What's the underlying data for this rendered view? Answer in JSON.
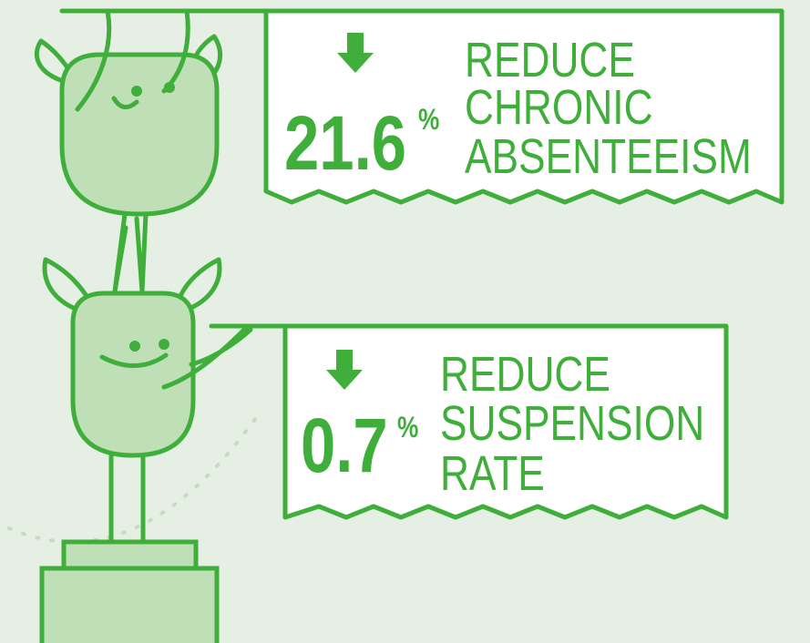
{
  "banners": [
    {
      "value": 21.6,
      "unit": "%",
      "lines": [
        "REDUCE",
        "CHRONIC",
        "ABSENTEEISM"
      ]
    },
    {
      "value": 0.7,
      "unit": "%",
      "lines": [
        "REDUCE",
        "SUSPENSION",
        "RATE"
      ]
    }
  ]
}
